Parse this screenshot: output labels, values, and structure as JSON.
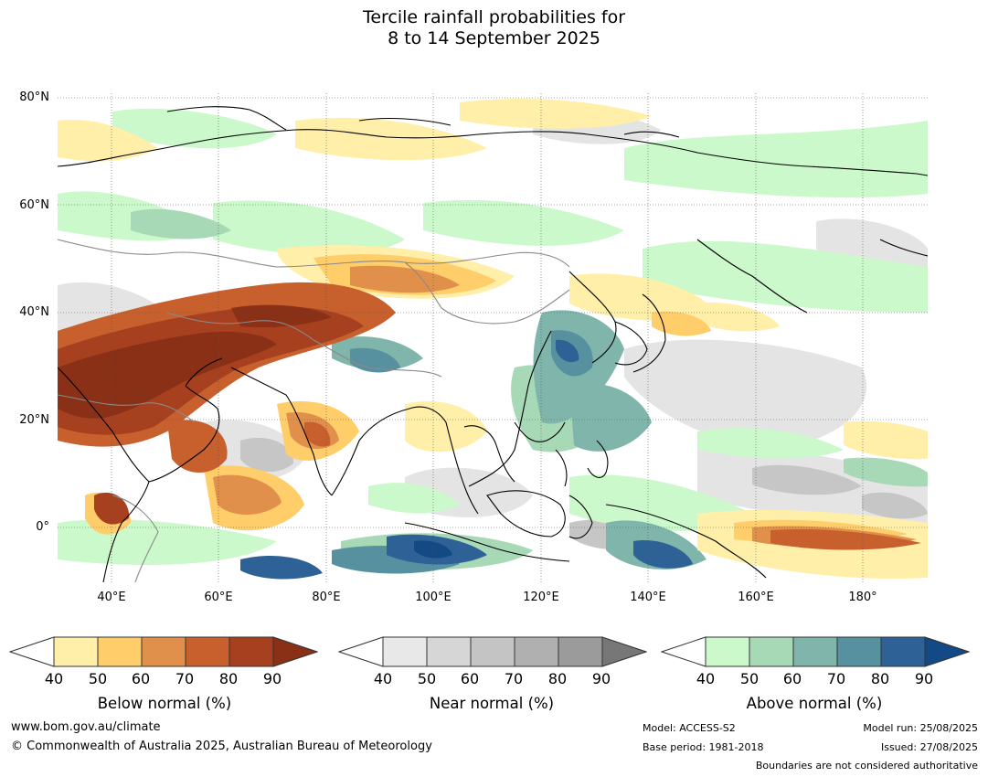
{
  "title": {
    "line1": "Tercile rainfall probabilities for",
    "line2": "8 to 14 September 2025"
  },
  "map": {
    "lat_labels": [
      "80°N",
      "60°N",
      "40°N",
      "20°N",
      "0°"
    ],
    "lon_labels": [
      "40°E",
      "60°E",
      "80°E",
      "100°E",
      "120°E",
      "140°E",
      "160°E",
      "180°"
    ]
  },
  "legends": {
    "below": {
      "label": "Below normal (%)",
      "ticks": [
        "40",
        "50",
        "60",
        "70",
        "80",
        "90"
      ],
      "colors": [
        "#ffefa8",
        "#ffcd6a",
        "#e0904a",
        "#c8602e",
        "#a7401f",
        "#8a3016"
      ]
    },
    "near": {
      "label": "Near normal (%)",
      "ticks": [
        "40",
        "50",
        "60",
        "70",
        "80",
        "90"
      ],
      "colors": [
        "#e8e8e8",
        "#d6d6d6",
        "#c4c4c4",
        "#b0b0b0",
        "#9b9b9b",
        "#777777"
      ]
    },
    "above": {
      "label": "Above normal (%)",
      "ticks": [
        "40",
        "50",
        "60",
        "70",
        "80",
        "90"
      ],
      "colors": [
        "#cbf9cb",
        "#a7d9b7",
        "#80b5ab",
        "#5791a0",
        "#2e6195",
        "#134a85"
      ]
    }
  },
  "footer": {
    "website": "www.bom.gov.au/climate",
    "copyright": "© Commonwealth of Australia 2025, Australian Bureau of Meteorology",
    "model": "Model: ACCESS-S2",
    "base_period": "Base period: 1981-2018",
    "model_run": "Model run: 25/08/2025",
    "issued": "Issued: 27/08/2025",
    "boundaries": "Boundaries are not considered authoritative"
  }
}
